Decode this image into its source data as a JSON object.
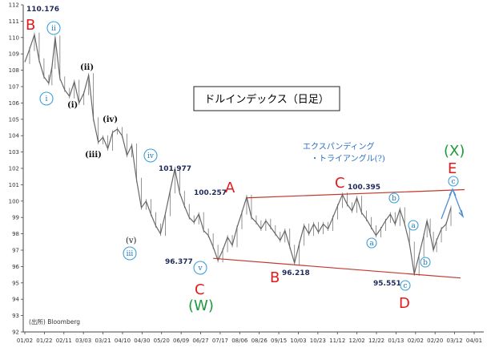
{
  "chart_data": {
    "type": "candlestick",
    "title": "ドルインデックス（日足）",
    "source": "(出所) Bloomberg",
    "ylim": [
      92,
      112
    ],
    "y_ticks": [
      92,
      93,
      94,
      95,
      96,
      97,
      98,
      99,
      100,
      101,
      102,
      103,
      104,
      105,
      106,
      107,
      108,
      109,
      110,
      111,
      112
    ],
    "x_ticks": [
      "01/02",
      "01/22",
      "02/11",
      "03/03",
      "03/21",
      "04/10",
      "04/30",
      "05/20",
      "06/09",
      "06/27",
      "07/17",
      "08/06",
      "08/26",
      "09/15",
      "10/03",
      "10/23",
      "11/12",
      "12/02",
      "12/22",
      "01/13",
      "02/02",
      "02/20",
      "03/12",
      "04/01"
    ],
    "grid": false,
    "price_path": [
      [
        0,
        108.5
      ],
      [
        3,
        109.3
      ],
      [
        6,
        110.176
      ],
      [
        9,
        108.6
      ],
      [
        12,
        107.6
      ],
      [
        15,
        107.2
      ],
      [
        17,
        108.2
      ],
      [
        19,
        110.0
      ],
      [
        22,
        107.5
      ],
      [
        25,
        106.8
      ],
      [
        28,
        106.4
      ],
      [
        31,
        107.3
      ],
      [
        34,
        106.0
      ],
      [
        37,
        106.6
      ],
      [
        40,
        107.7
      ],
      [
        43,
        105.0
      ],
      [
        46,
        103.6
      ],
      [
        49,
        103.9
      ],
      [
        52,
        103.2
      ],
      [
        55,
        104.2
      ],
      [
        58,
        104.4
      ],
      [
        61,
        104.0
      ],
      [
        64,
        102.8
      ],
      [
        67,
        103.4
      ],
      [
        70,
        101.3
      ],
      [
        73,
        99.6
      ],
      [
        76,
        100.0
      ],
      [
        79,
        99.2
      ],
      [
        82,
        98.5
      ],
      [
        85,
        98.0
      ],
      [
        88,
        99.2
      ],
      [
        91,
        100.6
      ],
      [
        94,
        101.977
      ],
      [
        97,
        100.5
      ],
      [
        100,
        99.7
      ],
      [
        103,
        99.0
      ],
      [
        106,
        98.7
      ],
      [
        109,
        99.2
      ],
      [
        112,
        98.2
      ],
      [
        115,
        97.9
      ],
      [
        118,
        97.2
      ],
      [
        121,
        96.377
      ],
      [
        124,
        97.0
      ],
      [
        127,
        97.8
      ],
      [
        130,
        97.3
      ],
      [
        133,
        98.4
      ],
      [
        136,
        99.3
      ],
      [
        139,
        100.257
      ],
      [
        142,
        99.0
      ],
      [
        145,
        98.7
      ],
      [
        148,
        98.3
      ],
      [
        151,
        98.8
      ],
      [
        154,
        98.4
      ],
      [
        157,
        98.0
      ],
      [
        160,
        97.6
      ],
      [
        163,
        98.2
      ],
      [
        166,
        97.2
      ],
      [
        169,
        96.218
      ],
      [
        172,
        97.4
      ],
      [
        175,
        98.5
      ],
      [
        178,
        98.0
      ],
      [
        181,
        98.6
      ],
      [
        184,
        98.1
      ],
      [
        187,
        98.6
      ],
      [
        190,
        98.3
      ],
      [
        193,
        99.0
      ],
      [
        196,
        99.7
      ],
      [
        199,
        100.395
      ],
      [
        202,
        99.8
      ],
      [
        205,
        99.4
      ],
      [
        208,
        100.2
      ],
      [
        211,
        99.3
      ],
      [
        214,
        98.9
      ],
      [
        217,
        98.4
      ],
      [
        220,
        97.9
      ],
      [
        223,
        98.3
      ],
      [
        226,
        98.8
      ],
      [
        229,
        99.2
      ],
      [
        232,
        98.6
      ],
      [
        235,
        99.5
      ],
      [
        238,
        98.6
      ],
      [
        241,
        97.4
      ],
      [
        244,
        95.551
      ],
      [
        247,
        96.7
      ],
      [
        250,
        97.9
      ],
      [
        252,
        98.8
      ],
      [
        254,
        98.0
      ],
      [
        256,
        97.0
      ],
      [
        258,
        97.6
      ],
      [
        261,
        98.3
      ],
      [
        264,
        98.6
      ],
      [
        267,
        99.6
      ]
    ],
    "price_path_x_unit": "approximate trading days from 01/02",
    "annotations": {
      "wave_labels": {
        "B": "B",
        "A": "A",
        "C_top": "C",
        "E": "E",
        "C_bottom": "C",
        "B_bottom": "B",
        "D": "D",
        "W": "(W)",
        "X": "(X)"
      },
      "price_labels": {
        "high": "110.176",
        "iv_high": "101.977",
        "a_high": "100.257",
        "c_high": "100.395",
        "w_low": "96.377",
        "b_low": "96.218",
        "d_low": "95.551"
      },
      "roman_circled": [
        "ii",
        "i",
        "iv",
        "iii",
        "v"
      ],
      "roman_paren": [
        "(ii)",
        "(i)",
        "(iv)",
        "(iii)",
        "(v)"
      ],
      "small_circled": [
        "b",
        "a",
        "c",
        "a",
        "b",
        "c"
      ],
      "note_line1": "エクスパンディング",
      "note_line2": "・トライアングル(?)"
    },
    "colors": {
      "price": "#666666",
      "trend_line": "#c0392b",
      "wave_red": "#e31a1c",
      "wave_green": "#1a9a3a",
      "circle": "#3aa0d8",
      "arrow": "#4b8fd0"
    }
  }
}
